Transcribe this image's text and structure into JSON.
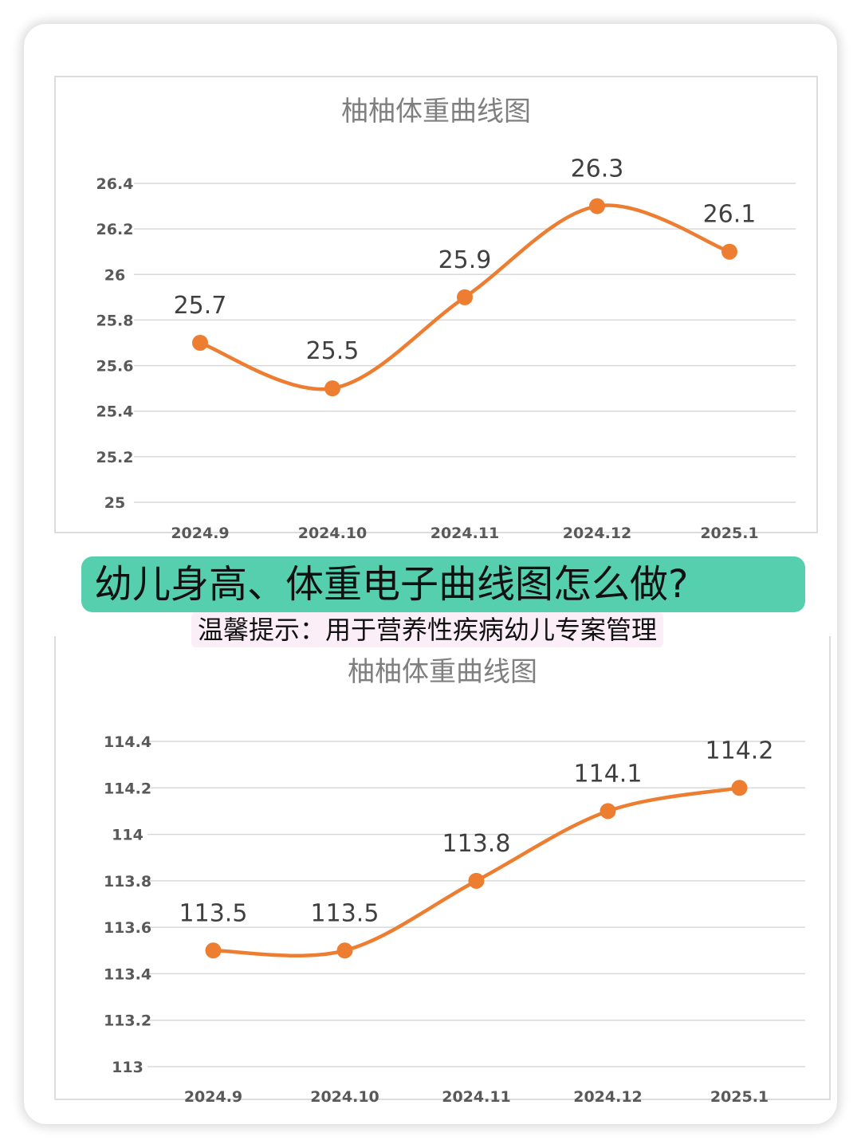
{
  "banner": {
    "title": "幼儿身高、体重电子曲线图怎么做?"
  },
  "tip": {
    "text": "温馨提示：用于营养性疾病幼儿专案管理"
  },
  "colors": {
    "series": "#ed7d31",
    "banner_bg": "#55cfad",
    "tip_bg": "#fbeef6",
    "grid": "#d9d9d9"
  },
  "chart_data": [
    {
      "type": "line",
      "title": "柚柚体重曲线图",
      "categories": [
        "2024.9",
        "2024.10",
        "2024.11",
        "2024.12",
        "2025.1"
      ],
      "series": [
        {
          "values": [
            25.7,
            25.5,
            25.9,
            26.3,
            26.1
          ]
        }
      ],
      "data_labels": [
        "25.7",
        "25.5",
        "25.9",
        "26.3",
        "26.1"
      ],
      "yticks": [
        "25",
        "25.2",
        "25.4",
        "25.6",
        "25.8",
        "26",
        "26.2",
        "26.4"
      ],
      "ylim": [
        25,
        26.4
      ],
      "smooth": true,
      "grid": true,
      "legend": "none"
    },
    {
      "type": "line",
      "title": "柚柚体重曲线图",
      "categories": [
        "2024.9",
        "2024.10",
        "2024.11",
        "2024.12",
        "2025.1"
      ],
      "series": [
        {
          "values": [
            113.5,
            113.5,
            113.8,
            114.1,
            114.2
          ]
        }
      ],
      "data_labels": [
        "113.5",
        "113.5",
        "113.8",
        "114.1",
        "114.2"
      ],
      "yticks": [
        "113",
        "113.2",
        "113.4",
        "113.6",
        "113.8",
        "114",
        "114.2",
        "114.4"
      ],
      "ylim": [
        113,
        114.4
      ],
      "smooth": true,
      "grid": true,
      "legend": "none"
    }
  ]
}
